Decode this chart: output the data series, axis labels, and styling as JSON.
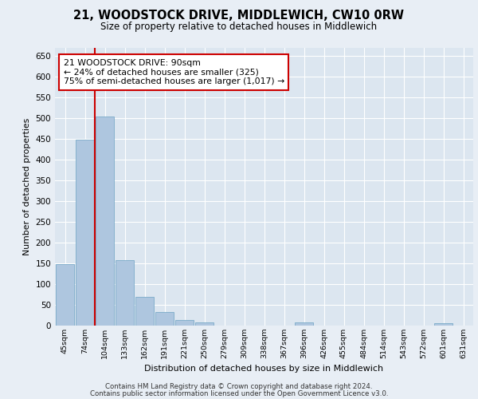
{
  "title1": "21, WOODSTOCK DRIVE, MIDDLEWICH, CW10 0RW",
  "title2": "Size of property relative to detached houses in Middlewich",
  "xlabel": "Distribution of detached houses by size in Middlewich",
  "ylabel": "Number of detached properties",
  "categories": [
    "45sqm",
    "74sqm",
    "104sqm",
    "133sqm",
    "162sqm",
    "191sqm",
    "221sqm",
    "250sqm",
    "279sqm",
    "309sqm",
    "338sqm",
    "367sqm",
    "396sqm",
    "426sqm",
    "455sqm",
    "484sqm",
    "514sqm",
    "543sqm",
    "572sqm",
    "601sqm",
    "631sqm"
  ],
  "values": [
    147,
    448,
    505,
    157,
    68,
    32,
    12,
    7,
    0,
    0,
    0,
    0,
    6,
    0,
    0,
    0,
    0,
    0,
    0,
    5,
    0
  ],
  "bar_color": "#aec6df",
  "bar_edgecolor": "#7aaac8",
  "highlight_color": "#cc0000",
  "annotation_text": "21 WOODSTOCK DRIVE: 90sqm\n← 24% of detached houses are smaller (325)\n75% of semi-detached houses are larger (1,017) →",
  "annotation_box_facecolor": "#ffffff",
  "annotation_box_edgecolor": "#cc0000",
  "ylim": [
    0,
    670
  ],
  "yticks": [
    0,
    50,
    100,
    150,
    200,
    250,
    300,
    350,
    400,
    450,
    500,
    550,
    600,
    650
  ],
  "footer1": "Contains HM Land Registry data © Crown copyright and database right 2024.",
  "footer2": "Contains public sector information licensed under the Open Government Licence v3.0.",
  "bg_color": "#e8eef5",
  "plot_bg_color": "#dce6f0"
}
